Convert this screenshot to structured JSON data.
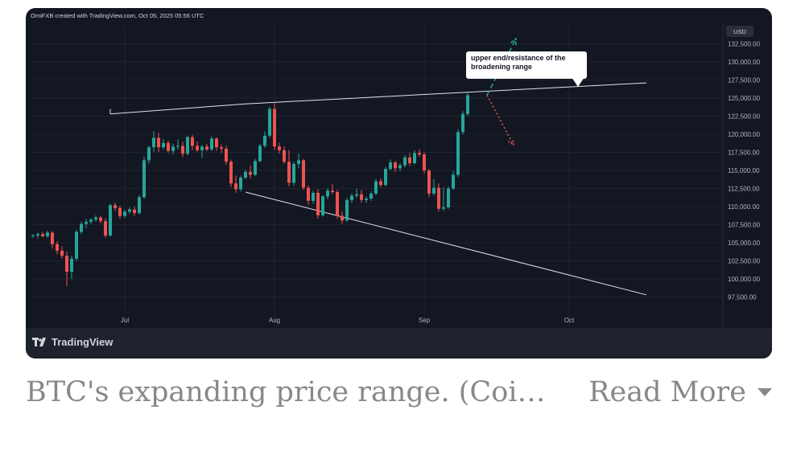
{
  "header": {
    "attribution": "OmiFXB created with TradingView.com, Oct 05, 2025 05:56 UTC"
  },
  "axis": {
    "currency": "USD"
  },
  "annotation": {
    "text_line1": "upper end/resistance of the",
    "text_line2": "broadening range"
  },
  "brand": {
    "name": "TradingView"
  },
  "caption": {
    "text": "BTC's expanding price range. (CoinDe...",
    "read_more": "Read More"
  },
  "colors": {
    "up": "#26a69a",
    "down": "#ef5350",
    "bg": "#131722",
    "grid": "#1f2330",
    "text": "#b2b5be"
  },
  "chart_data": {
    "type": "candlestick",
    "ylim": [
      95000,
      135000
    ],
    "y_ticks": [
      97500,
      100000,
      102500,
      105000,
      107500,
      110000,
      112500,
      115000,
      117500,
      120000,
      122500,
      125000,
      127500,
      130000,
      132500
    ],
    "y_tick_labels": [
      "97,500.00",
      "100,000.00",
      "102,500.00",
      "105,000.00",
      "107,500.00",
      "110,000.00",
      "112,500.00",
      "115,000.00",
      "117,500.00",
      "120,000.00",
      "122,500.00",
      "125,000.00",
      "127,500.00",
      "130,000.00",
      "132,500.00"
    ],
    "x_labels": [
      {
        "label": "Jul",
        "index": 19
      },
      {
        "label": "Aug",
        "index": 50
      },
      {
        "label": "Sep",
        "index": 81
      },
      {
        "label": "Oct",
        "index": 111
      }
    ],
    "candles": [
      [
        106000,
        106200,
        105700,
        106000
      ],
      [
        106000,
        106400,
        105600,
        106200
      ],
      [
        106200,
        106500,
        105800,
        105900
      ],
      [
        105900,
        106700,
        105700,
        106400
      ],
      [
        106400,
        106600,
        104200,
        104800
      ],
      [
        104800,
        105200,
        103400,
        103900
      ],
      [
        103900,
        104500,
        102800,
        103200
      ],
      [
        103200,
        103800,
        99000,
        101000
      ],
      [
        101000,
        103200,
        100000,
        102800
      ],
      [
        102800,
        106800,
        102500,
        106500
      ],
      [
        106500,
        107900,
        106200,
        107600
      ],
      [
        107600,
        108300,
        107000,
        107900
      ],
      [
        107900,
        108400,
        107600,
        108200
      ],
      [
        108200,
        108800,
        107900,
        108500
      ],
      [
        108500,
        108700,
        107700,
        108000
      ],
      [
        108000,
        108400,
        105700,
        106000
      ],
      [
        106000,
        110400,
        105800,
        110200
      ],
      [
        110200,
        110600,
        109400,
        109800
      ],
      [
        109800,
        110100,
        108300,
        108700
      ],
      [
        108700,
        109600,
        108400,
        109300
      ],
      [
        109300,
        109900,
        109000,
        109600
      ],
      [
        109600,
        110000,
        108700,
        109100
      ],
      [
        109100,
        111600,
        108900,
        111300
      ],
      [
        111300,
        116900,
        111100,
        116400
      ],
      [
        116400,
        118400,
        115900,
        118200
      ],
      [
        118200,
        120400,
        117600,
        119500
      ],
      [
        119500,
        120200,
        117500,
        118200
      ],
      [
        118200,
        119300,
        117900,
        118800
      ],
      [
        118800,
        119100,
        117400,
        117700
      ],
      [
        117700,
        118700,
        117200,
        118300
      ],
      [
        118300,
        119300,
        117900,
        118400
      ],
      [
        118400,
        119000,
        116800,
        117300
      ],
      [
        117300,
        119800,
        117100,
        119600
      ],
      [
        119600,
        119900,
        117800,
        118400
      ],
      [
        118400,
        119000,
        117600,
        117800
      ],
      [
        117800,
        118500,
        116700,
        118300
      ],
      [
        118300,
        118700,
        117700,
        117900
      ],
      [
        117900,
        119700,
        117700,
        119400
      ],
      [
        119400,
        119600,
        117700,
        118200
      ],
      [
        118200,
        118600,
        117400,
        118000
      ],
      [
        118000,
        118400,
        115800,
        116200
      ],
      [
        116200,
        116500,
        112700,
        113200
      ],
      [
        113200,
        114300,
        111900,
        112400
      ],
      [
        112400,
        114300,
        112100,
        114000
      ],
      [
        114000,
        115100,
        113800,
        114800
      ],
      [
        114800,
        115700,
        113900,
        114400
      ],
      [
        114400,
        116600,
        114200,
        116300
      ],
      [
        116300,
        118700,
        116100,
        118400
      ],
      [
        118400,
        120400,
        118100,
        119800
      ],
      [
        119800,
        123800,
        119500,
        123500
      ],
      [
        123500,
        124400,
        117800,
        118300
      ],
      [
        118300,
        118800,
        117300,
        117800
      ],
      [
        117800,
        118300,
        115900,
        116200
      ],
      [
        116200,
        117800,
        112800,
        113300
      ],
      [
        113300,
        116200,
        112900,
        115900
      ],
      [
        115900,
        117300,
        115300,
        116400
      ],
      [
        116400,
        116600,
        112300,
        112600
      ],
      [
        112600,
        112900,
        110200,
        110800
      ],
      [
        110800,
        112200,
        110400,
        111900
      ],
      [
        111900,
        112400,
        108300,
        108800
      ],
      [
        108800,
        111600,
        108600,
        111400
      ],
      [
        111400,
        112500,
        111000,
        112200
      ],
      [
        112200,
        113100,
        111700,
        112000
      ],
      [
        112000,
        112300,
        108300,
        108700
      ],
      [
        108700,
        109300,
        107600,
        108100
      ],
      [
        108100,
        111200,
        107900,
        110900
      ],
      [
        110900,
        111800,
        110500,
        111500
      ],
      [
        111500,
        112500,
        111200,
        111700
      ],
      [
        111700,
        112300,
        110500,
        110900
      ],
      [
        110900,
        111400,
        110500,
        111100
      ],
      [
        111100,
        112100,
        110800,
        111800
      ],
      [
        111800,
        113800,
        111600,
        113500
      ],
      [
        113500,
        113900,
        112700,
        113000
      ],
      [
        113000,
        115500,
        112800,
        115200
      ],
      [
        115200,
        116500,
        115000,
        116100
      ],
      [
        116100,
        116300,
        114800,
        115300
      ],
      [
        115300,
        116000,
        114900,
        115700
      ],
      [
        115700,
        117100,
        115400,
        116800
      ],
      [
        116800,
        117400,
        115600,
        116000
      ],
      [
        116000,
        117800,
        115800,
        117400
      ],
      [
        117400,
        117900,
        116900,
        117200
      ],
      [
        117200,
        117500,
        114600,
        115000
      ],
      [
        115000,
        115200,
        111300,
        111800
      ],
      [
        111800,
        113800,
        111500,
        112600
      ],
      [
        112600,
        113200,
        109300,
        109700
      ],
      [
        109700,
        112700,
        109400,
        109900
      ],
      [
        109900,
        112800,
        109700,
        112500
      ],
      [
        112500,
        114900,
        112300,
        114400
      ],
      [
        114400,
        120700,
        114100,
        120300
      ],
      [
        120300,
        123200,
        120000,
        122800
      ],
      [
        122800,
        125800,
        122500,
        125400
      ]
    ],
    "trendlines": [
      {
        "name": "",
        "points": [
          [
            16,
            122800
          ],
          [
            44,
            124200
          ],
          [
            127,
            127100
          ]
        ],
        "style": "solid"
      },
      {
        "name": "",
        "points": [
          [
            44,
            112000
          ],
          [
            127,
            97800
          ]
        ],
        "style": "solid"
      },
      {
        "name": "",
        "points": [
          [
            16,
            122800
          ],
          [
            16,
            123500
          ]
        ],
        "style": "solid"
      }
    ],
    "projections": [
      {
        "style": "dashed",
        "color": "#26a69a",
        "points": [
          [
            94,
            125400
          ],
          [
            100,
            133200
          ]
        ]
      },
      {
        "style": "dotted",
        "color": "#ef5350",
        "points": [
          [
            94,
            125400
          ],
          [
            99.5,
            118500
          ]
        ]
      }
    ]
  }
}
